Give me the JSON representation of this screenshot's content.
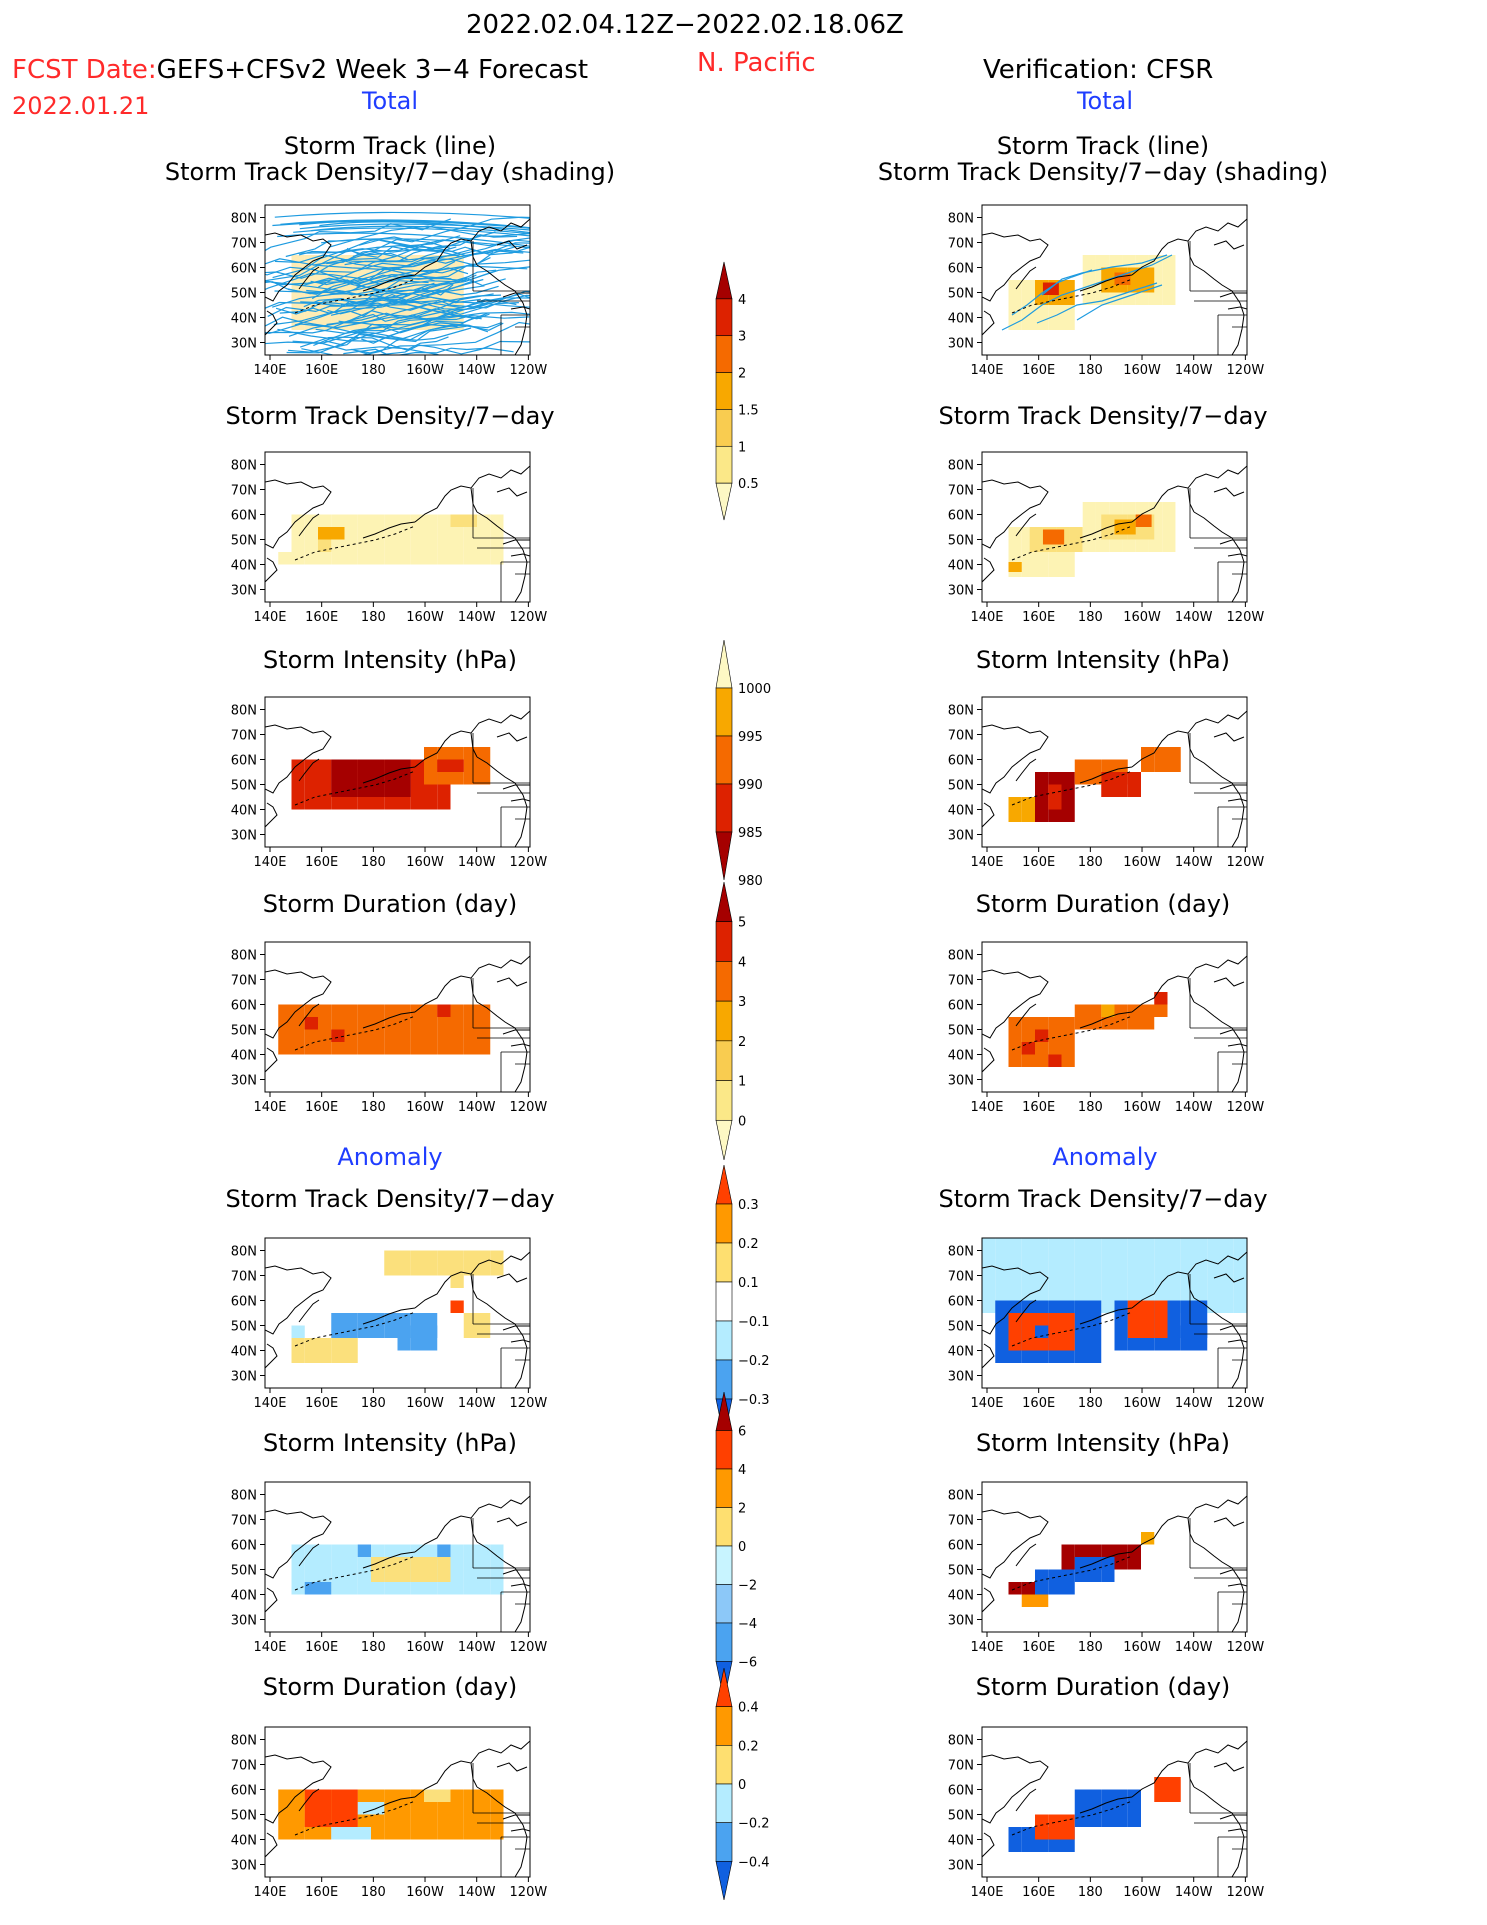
{
  "header": {
    "date_range": "2022.02.04.12Z−2022.02.18.06Z",
    "fcst_prefix": "FCST Date:",
    "forecast_name": "GEFS+CFSv2 Week 3−4 Forecast",
    "region": "N. Pacific",
    "verification": "Verification: CFSR",
    "fcst_date": "2022.01.21"
  },
  "sections": {
    "total": "Total",
    "anomaly": "Anomaly"
  },
  "axes": {
    "lat_ticks": [
      "80N",
      "70N",
      "60N",
      "50N",
      "40N",
      "30N"
    ],
    "lon_ticks": [
      "140E",
      "160E",
      "180",
      "160W",
      "140W",
      "120W"
    ]
  },
  "titles": {
    "track_line": "Storm Track (line)",
    "track_shading": "Storm Track Density/7−day (shading)",
    "density": "Storm Track Density/7−day",
    "intensity": "Storm Intensity (hPa)",
    "duration": "Storm Duration (day)"
  },
  "colorbars": [
    {
      "id": "density_total",
      "labels": [
        "4",
        "3",
        "2",
        "1.5",
        "1",
        "0.5"
      ],
      "colors": [
        "#a50000",
        "#dd2200",
        "#f56a00",
        "#f8a800",
        "#f9cc50",
        "#fbe888",
        "#fdf8c4"
      ]
    },
    {
      "id": "intensity_total",
      "labels": [
        "1000",
        "995",
        "990",
        "985",
        "980"
      ],
      "colors": [
        "#fdf8c4",
        "#f8a800",
        "#f56a00",
        "#dd2200",
        "#a50000"
      ]
    },
    {
      "id": "duration_total",
      "labels": [
        "5",
        "4",
        "3",
        "2",
        "1",
        "0"
      ],
      "colors": [
        "#a50000",
        "#dd2200",
        "#f56a00",
        "#f8a800",
        "#f9cc50",
        "#fbe888",
        "#fdf8c4"
      ]
    },
    {
      "id": "density_anom",
      "labels": [
        "0.3",
        "0.2",
        "0.1",
        "−0.1",
        "−0.2",
        "−0.3"
      ],
      "colors": [
        "#ff4000",
        "#ff9900",
        "#fedf70",
        "#ffffff",
        "#b4ecff",
        "#4ba3f0",
        "#1060e0"
      ]
    },
    {
      "id": "intensity_anom",
      "labels": [
        "6",
        "4",
        "2",
        "0",
        "−2",
        "−4",
        "−6"
      ],
      "colors": [
        "#a50000",
        "#ff4000",
        "#ff9900",
        "#fedf70",
        "#c8f4ff",
        "#8cc8f8",
        "#4ba3f0",
        "#1060e0"
      ]
    },
    {
      "id": "duration_anom",
      "labels": [
        "0.4",
        "0.2",
        "0",
        "−0.2",
        "−0.4"
      ],
      "colors": [
        "#ff4000",
        "#ff9900",
        "#fedf70",
        "#b4ecff",
        "#4ba3f0",
        "#1060e0"
      ]
    }
  ],
  "chart_data": [
    {
      "type": "heatmap",
      "title": "Storm Track (line)",
      "subtitle": "Storm Track Density/7−day (shading)",
      "source": "GEFS+CFSv2 forecast",
      "description": "ensemble storm tracks",
      "xlim": [
        140,
        240
      ],
      "ylim": [
        25,
        85
      ]
    },
    {
      "type": "heatmap",
      "title": "Storm Track (line)",
      "subtitle": "Storm Track Density/7−day (shading)",
      "source": "CFSR",
      "xlim": [
        140,
        240
      ],
      "ylim": [
        25,
        85
      ]
    },
    {
      "type": "heatmap",
      "title": "Storm Track Density/7−day",
      "source": "GEFS+CFSv2 forecast",
      "xlim": [
        140,
        240
      ],
      "ylim": [
        25,
        85
      ]
    },
    {
      "type": "heatmap",
      "title": "Storm Track Density/7−day",
      "source": "CFSR",
      "xlim": [
        140,
        240
      ],
      "ylim": [
        25,
        85
      ]
    },
    {
      "type": "heatmap",
      "title": "Storm Intensity (hPa)",
      "source": "GEFS+CFSv2 forecast",
      "xlim": [
        140,
        240
      ],
      "ylim": [
        25,
        85
      ]
    },
    {
      "type": "heatmap",
      "title": "Storm Intensity (hPa)",
      "source": "CFSR",
      "xlim": [
        140,
        240
      ],
      "ylim": [
        25,
        85
      ]
    },
    {
      "type": "heatmap",
      "title": "Storm Duration (day)",
      "source": "GEFS+CFSv2 forecast",
      "xlim": [
        140,
        240
      ],
      "ylim": [
        25,
        85
      ]
    },
    {
      "type": "heatmap",
      "title": "Storm Duration (day)",
      "source": "CFSR",
      "xlim": [
        140,
        240
      ],
      "ylim": [
        25,
        85
      ]
    },
    {
      "type": "heatmap",
      "title": "Storm Track Density/7−day",
      "source": "GEFS+CFSv2 forecast anomaly",
      "xlim": [
        140,
        240
      ],
      "ylim": [
        25,
        85
      ]
    },
    {
      "type": "heatmap",
      "title": "Storm Track Density/7−day",
      "source": "CFSR anomaly",
      "xlim": [
        140,
        240
      ],
      "ylim": [
        25,
        85
      ]
    },
    {
      "type": "heatmap",
      "title": "Storm Intensity (hPa)",
      "source": "GEFS+CFSv2 forecast anomaly",
      "xlim": [
        140,
        240
      ],
      "ylim": [
        25,
        85
      ]
    },
    {
      "type": "heatmap",
      "title": "Storm Intensity (hPa)",
      "source": "CFSR anomaly",
      "xlim": [
        140,
        240
      ],
      "ylim": [
        25,
        85
      ]
    },
    {
      "type": "heatmap",
      "title": "Storm Duration (day)",
      "source": "GEFS+CFSv2 forecast anomaly",
      "xlim": [
        140,
        240
      ],
      "ylim": [
        25,
        85
      ]
    },
    {
      "type": "heatmap",
      "title": "Storm Duration (day)",
      "source": "CFSR anomaly",
      "xlim": [
        140,
        240
      ],
      "ylim": [
        25,
        85
      ]
    }
  ]
}
